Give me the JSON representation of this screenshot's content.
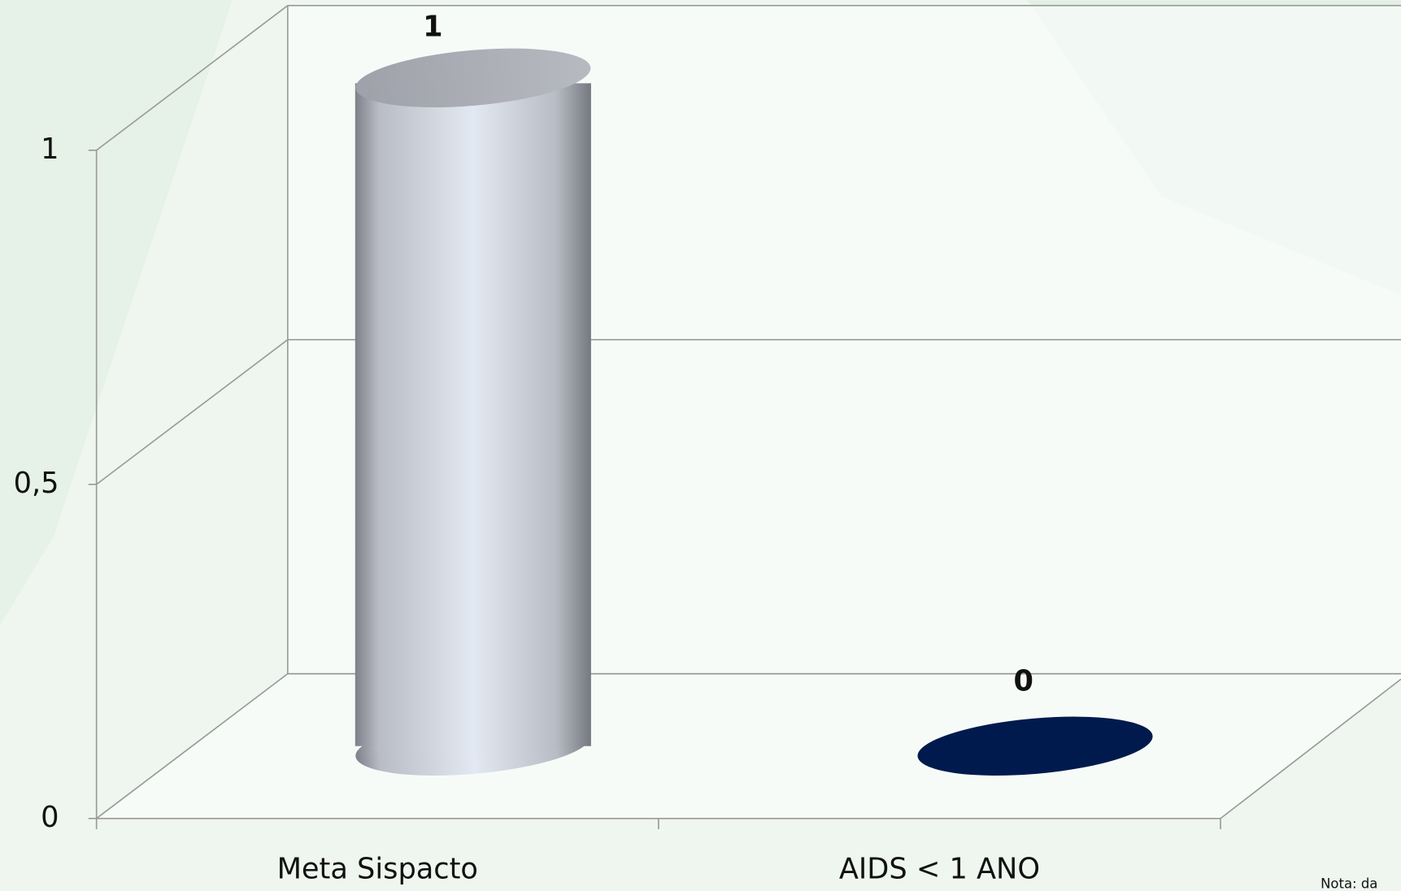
{
  "chart_data": {
    "type": "cylinder-bar",
    "categories": [
      "Meta Sispacto",
      "AIDS < 1 ANO"
    ],
    "values": [
      1,
      0
    ],
    "colors": [
      "#c9ccd3",
      "#001a4d"
    ],
    "ylim": [
      0,
      1
    ],
    "yticks": [
      0,
      {
        "value": 0.5,
        "label": "0,5"
      },
      1
    ],
    "grid": true,
    "note": "Nota: da"
  }
}
